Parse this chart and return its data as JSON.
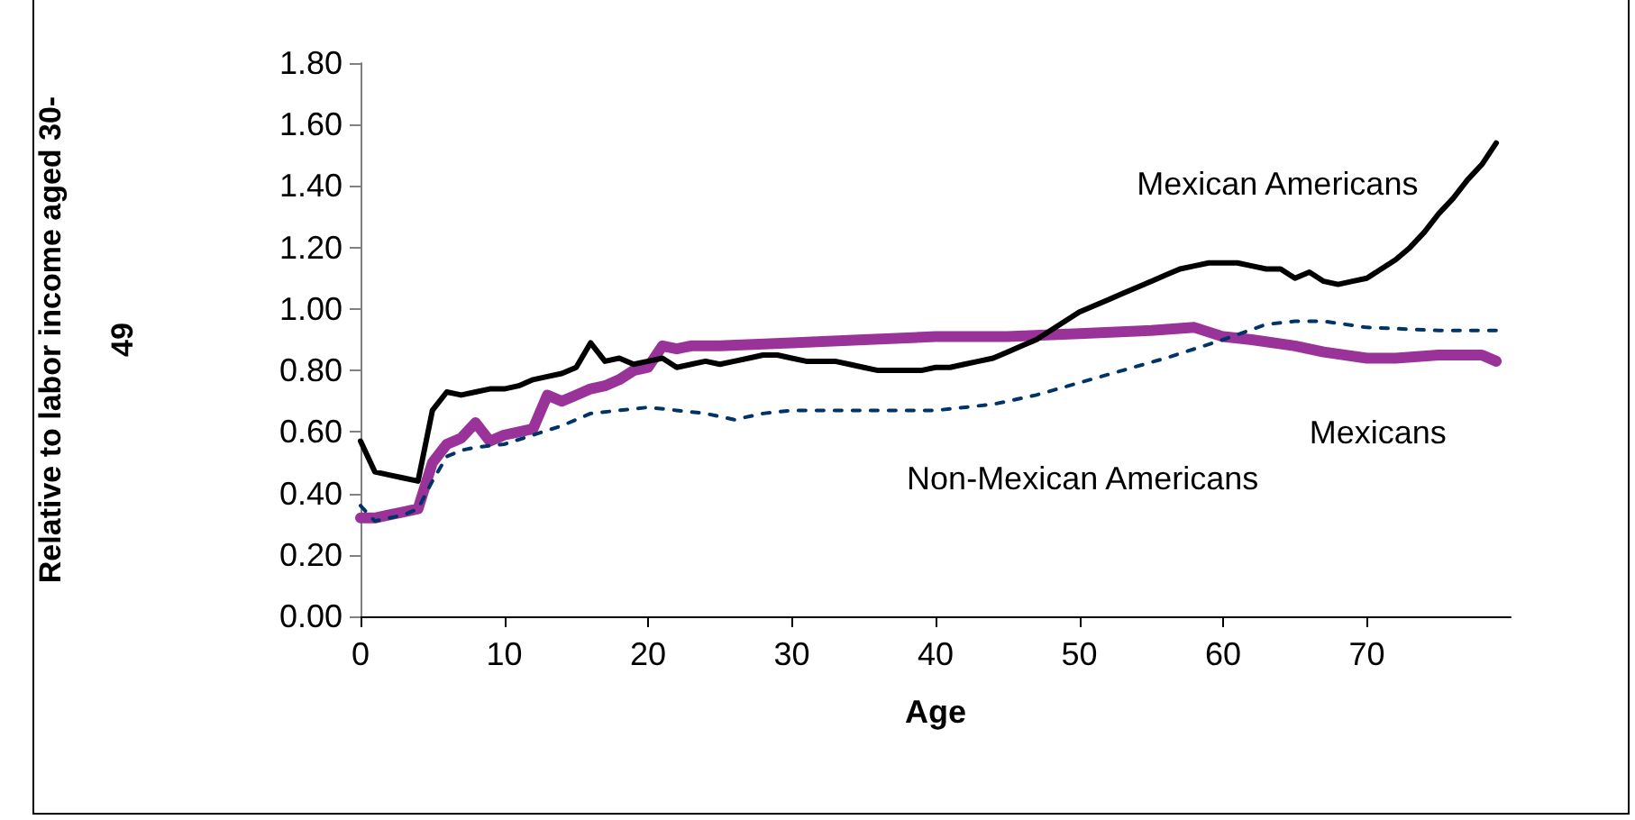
{
  "chart_data": {
    "type": "line",
    "xlabel": "Age",
    "ylabel": "Relative to labor income aged 30-49",
    "xlim": [
      0,
      80
    ],
    "xticks": [
      0,
      10,
      20,
      30,
      40,
      50,
      60,
      70
    ],
    "ylim": [
      0,
      1.8
    ],
    "yticks": [
      {
        "value": 0,
        "label": "0.00"
      },
      {
        "value": 0.2,
        "label": "0.20"
      },
      {
        "value": 0.4,
        "label": "0.40"
      },
      {
        "value": 0.6,
        "label": "0.60"
      },
      {
        "value": 0.8,
        "label": "0.80"
      },
      {
        "value": 1.0,
        "label": "1.00"
      },
      {
        "value": 1.2,
        "label": "1.20"
      },
      {
        "value": 1.4,
        "label": "1.40"
      },
      {
        "value": 1.6,
        "label": "1.60"
      },
      {
        "value": 1.8,
        "label": "1.80"
      }
    ],
    "grid": false,
    "legend": false,
    "marker": "none",
    "series": [
      {
        "name": "Mexican Americans",
        "color": "#000000",
        "line_style": "solid",
        "x": [
          0,
          1,
          2,
          3,
          4,
          5,
          6,
          7,
          8,
          9,
          10,
          11,
          12,
          13,
          14,
          15,
          16,
          17,
          18,
          19,
          20,
          21,
          22,
          23,
          24,
          25,
          26,
          27,
          28,
          29,
          30,
          31,
          32,
          33,
          34,
          35,
          36,
          37,
          38,
          39,
          40,
          41,
          42,
          43,
          44,
          45,
          46,
          47,
          48,
          49,
          50,
          51,
          52,
          53,
          54,
          55,
          56,
          57,
          58,
          59,
          60,
          61,
          62,
          63,
          64,
          65,
          66,
          67,
          68,
          69,
          70,
          71,
          72,
          73,
          74,
          75,
          76,
          77,
          78,
          79
        ],
        "values": [
          0.57,
          0.47,
          0.46,
          0.45,
          0.44,
          0.67,
          0.73,
          0.72,
          0.73,
          0.74,
          0.74,
          0.75,
          0.77,
          0.78,
          0.79,
          0.81,
          0.89,
          0.83,
          0.84,
          0.82,
          0.83,
          0.84,
          0.81,
          0.82,
          0.83,
          0.82,
          0.83,
          0.84,
          0.85,
          0.85,
          0.84,
          0.83,
          0.83,
          0.83,
          0.82,
          0.81,
          0.8,
          0.8,
          0.8,
          0.8,
          0.81,
          0.81,
          0.82,
          0.83,
          0.84,
          0.86,
          0.88,
          0.9,
          0.93,
          0.96,
          0.99,
          1.01,
          1.03,
          1.05,
          1.07,
          1.09,
          1.11,
          1.13,
          1.14,
          1.15,
          1.15,
          1.15,
          1.14,
          1.13,
          1.13,
          1.1,
          1.12,
          1.09,
          1.08,
          1.09,
          1.1,
          1.13,
          1.16,
          1.2,
          1.25,
          1.31,
          1.36,
          1.42,
          1.47,
          1.54
        ]
      },
      {
        "name": "Non-Mexican Americans",
        "color": "#003366",
        "line_style": "dashed",
        "x": [
          0,
          1,
          2,
          3,
          4,
          5,
          6,
          7,
          8,
          10,
          12,
          14,
          16,
          18,
          20,
          22,
          24,
          26,
          28,
          30,
          35,
          40,
          44,
          47,
          50,
          53,
          56,
          60,
          63,
          65,
          67,
          70,
          75,
          79
        ],
        "values": [
          0.36,
          0.31,
          0.32,
          0.33,
          0.35,
          0.44,
          0.52,
          0.54,
          0.55,
          0.56,
          0.59,
          0.62,
          0.66,
          0.67,
          0.68,
          0.67,
          0.66,
          0.64,
          0.66,
          0.67,
          0.67,
          0.67,
          0.69,
          0.72,
          0.76,
          0.8,
          0.84,
          0.9,
          0.95,
          0.96,
          0.96,
          0.94,
          0.93,
          0.93
        ]
      },
      {
        "name": "Mexicans",
        "color": "#993399",
        "line_style": "solid",
        "x": [
          0,
          1,
          2,
          3,
          4,
          5,
          6,
          7,
          8,
          9,
          10,
          11,
          12,
          13,
          14,
          15,
          16,
          17,
          18,
          19,
          20,
          21,
          22,
          23,
          25,
          30,
          35,
          40,
          45,
          50,
          55,
          58,
          60,
          62,
          65,
          67,
          70,
          72,
          75,
          78,
          79
        ],
        "values": [
          0.32,
          0.32,
          0.33,
          0.34,
          0.35,
          0.5,
          0.56,
          0.58,
          0.63,
          0.57,
          0.59,
          0.6,
          0.61,
          0.72,
          0.7,
          0.72,
          0.74,
          0.75,
          0.77,
          0.8,
          0.81,
          0.88,
          0.87,
          0.88,
          0.88,
          0.89,
          0.9,
          0.91,
          0.91,
          0.92,
          0.93,
          0.94,
          0.91,
          0.9,
          0.88,
          0.86,
          0.84,
          0.84,
          0.85,
          0.85,
          0.83
        ]
      }
    ]
  }
}
